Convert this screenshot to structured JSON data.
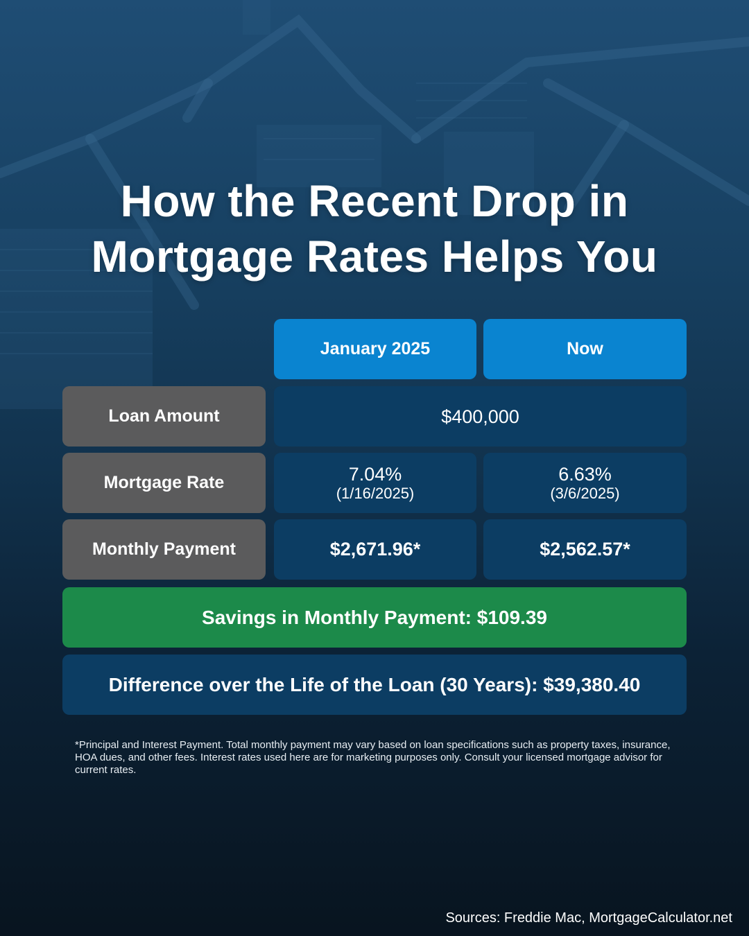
{
  "title": {
    "line1": "How the Recent Drop in",
    "line2": "Mortgage Rates Helps You"
  },
  "table": {
    "headers": [
      "January 2025",
      "Now"
    ],
    "loan_amount": {
      "label": "Loan Amount",
      "value": "$400,000"
    },
    "mortgage_rate": {
      "label": "Mortgage Rate",
      "january": {
        "rate": "7.04%",
        "date": "(1/16/2025)"
      },
      "now": {
        "rate": "6.63%",
        "date": "(3/6/2025)"
      }
    },
    "monthly_payment": {
      "label": "Monthly Payment",
      "january": "$2,671.96*",
      "now": "$2,562.57*"
    }
  },
  "savings": "Savings in Monthly Payment: $109.39",
  "difference": "Difference over the Life of the Loan (30 Years): $39,380.40",
  "footnote": "*Principal and Interest Payment. Total monthly payment may vary based on loan specifications such as property taxes, insurance, HOA dues, and other fees. Interest rates used here are for marketing purposes only. Consult your licensed mortgage advisor for current rates.",
  "sources": "Sources: Freddie Mac, MortgageCalculator.net",
  "colors": {
    "header_blue": "#0a84d0",
    "label_gray": "#5b5b5c",
    "value_navy": "#0c3d63",
    "savings_green": "#1c8a4a",
    "background_top": "#1f4d74",
    "background_bottom": "#08141f"
  }
}
